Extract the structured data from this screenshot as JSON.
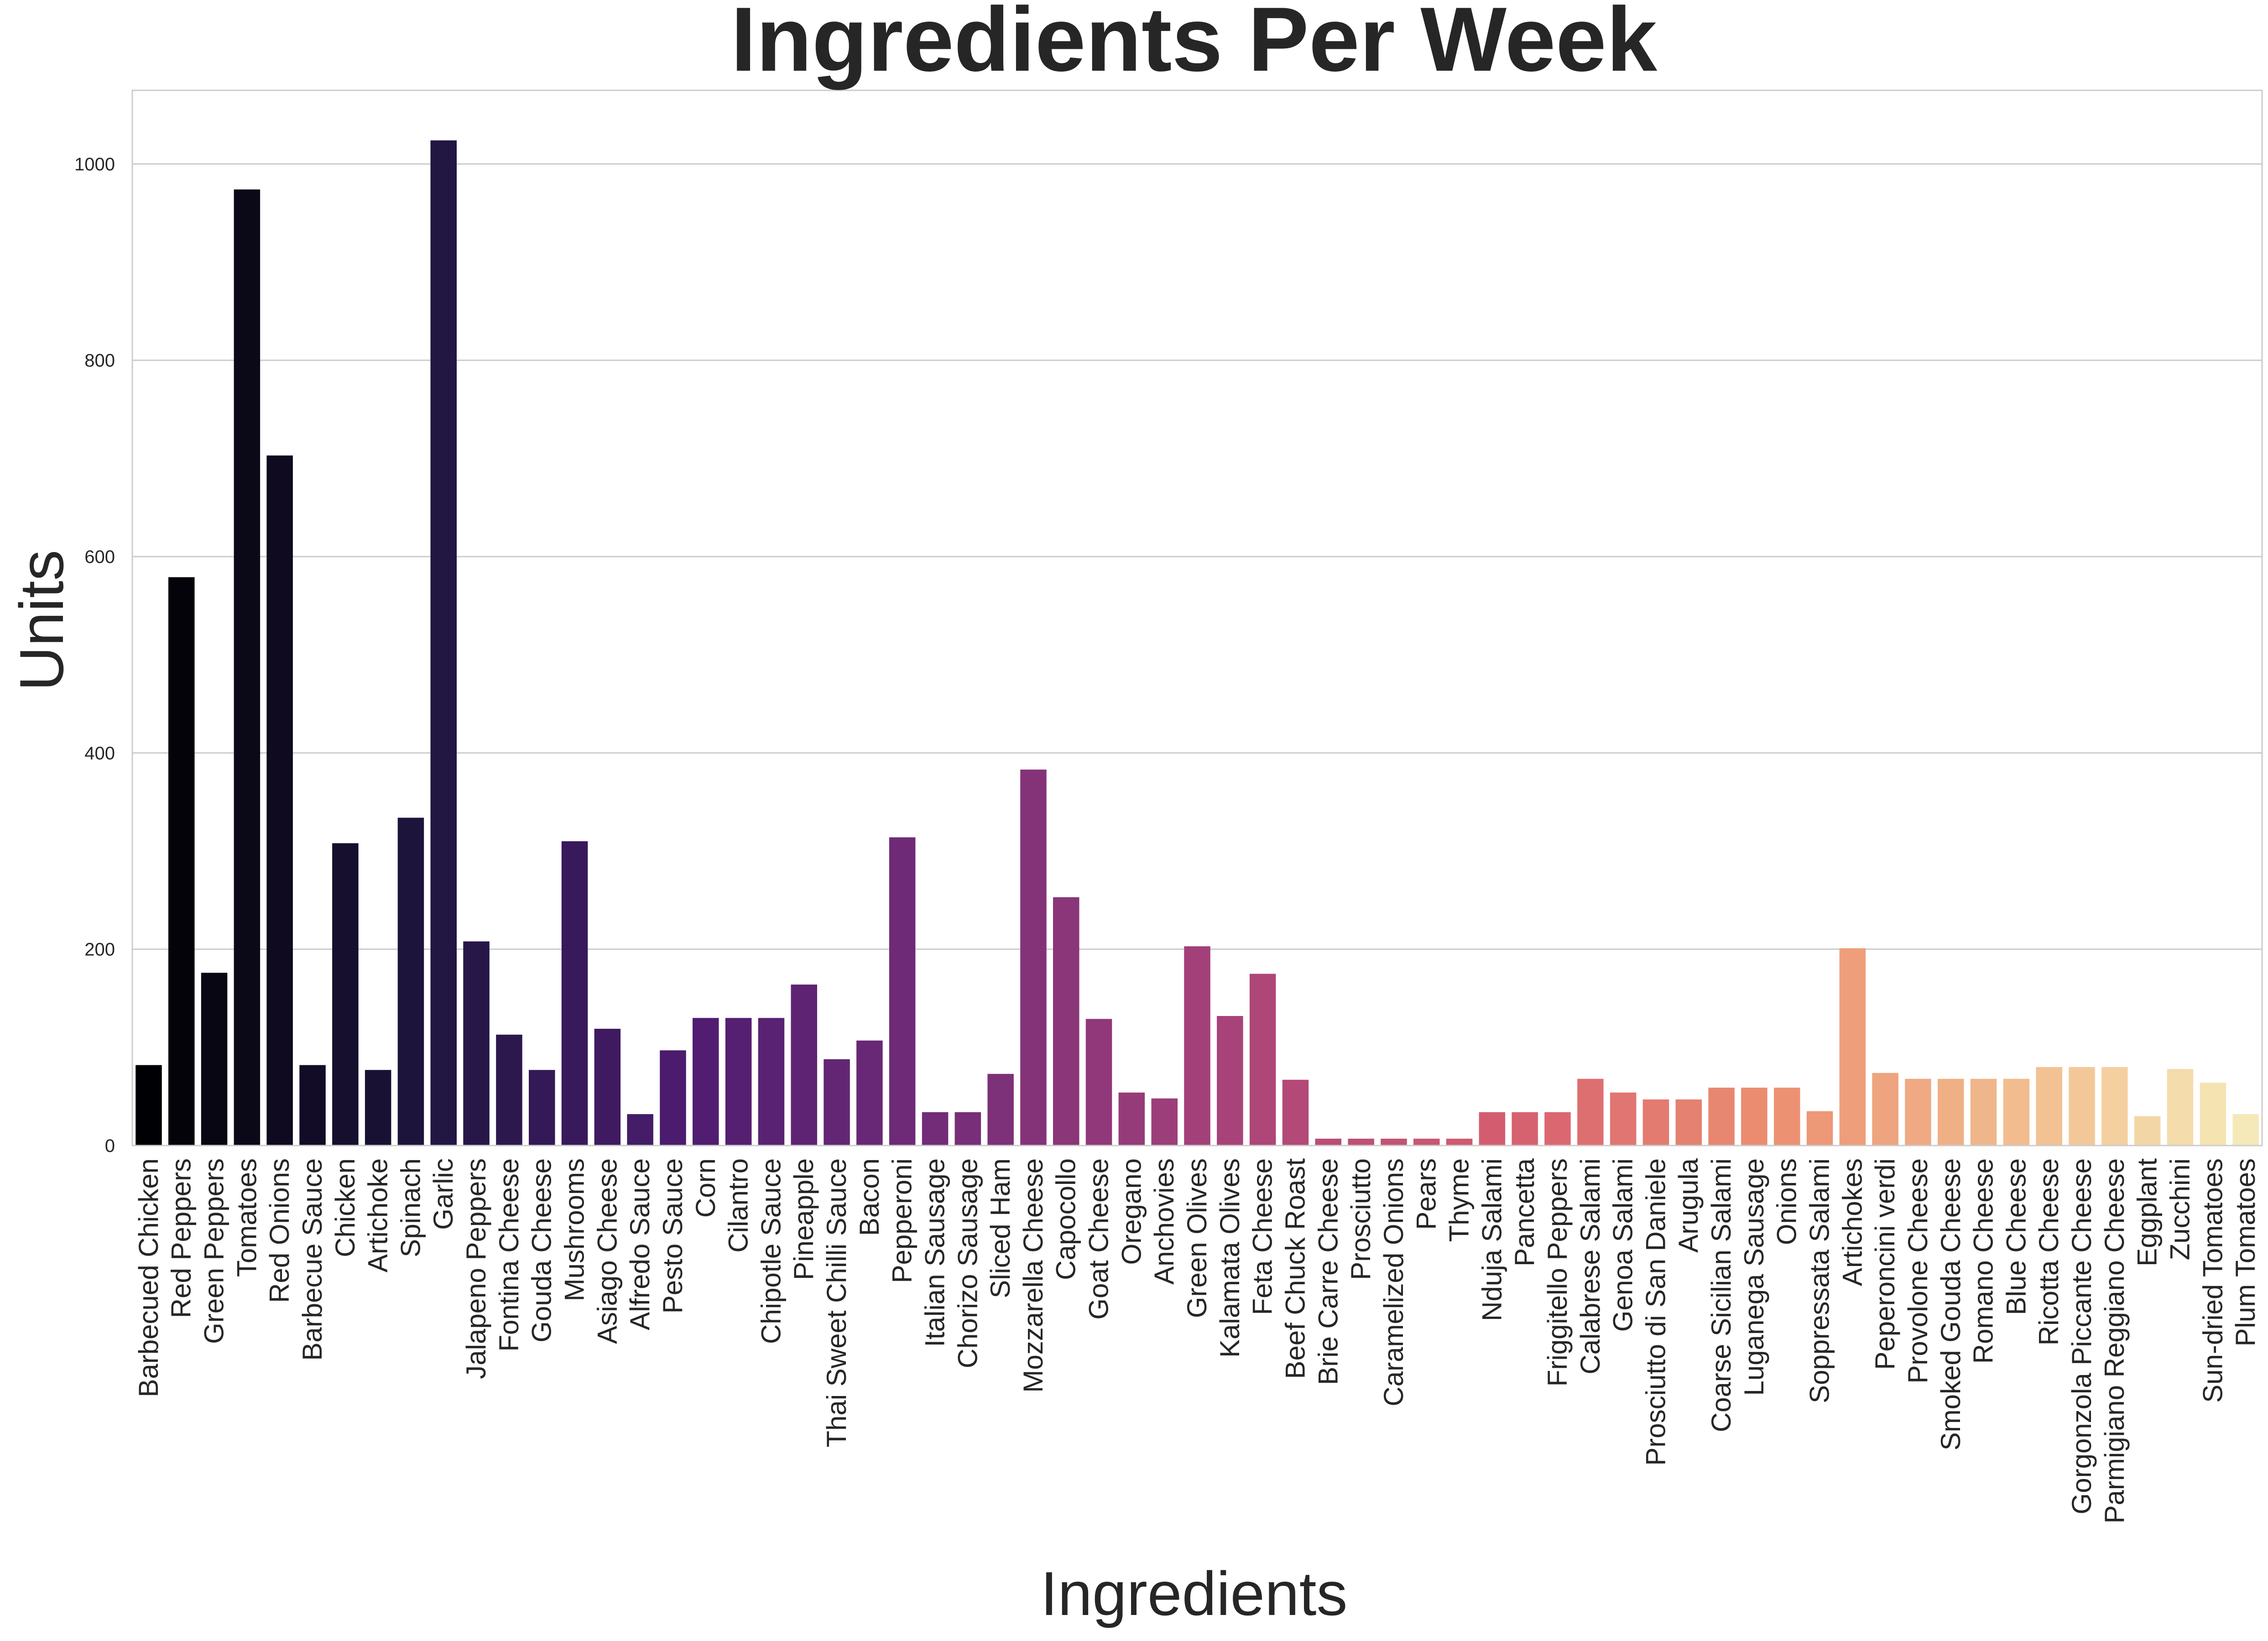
{
  "chart_data": {
    "type": "bar",
    "title": "Ingredients Per Week",
    "xlabel": "Ingredients",
    "ylabel": "Units",
    "ylim": [
      0,
      1075
    ],
    "yticks": [
      0,
      200,
      400,
      600,
      800,
      1000
    ],
    "grid": "horizontal",
    "palette": "magma",
    "colors": {
      "grid": "#cccccc",
      "frame": "#cccccc",
      "background": "#ffffff"
    },
    "categories": [
      "Barbecued Chicken",
      "Red Peppers",
      "Green Peppers",
      "Tomatoes",
      "Red Onions",
      "Barbecue Sauce",
      "Chicken",
      "Artichoke",
      "Spinach",
      "Garlic",
      "Jalapeno Peppers",
      "Fontina Cheese",
      "Gouda Cheese",
      "Mushrooms",
      "Asiago Cheese",
      "Alfredo Sauce",
      "Pesto Sauce",
      "Corn",
      "Cilantro",
      "Chipotle Sauce",
      "Pineapple",
      "Thai Sweet Chilli Sauce",
      "Bacon",
      "Pepperoni",
      "Italian Sausage",
      "Chorizo Sausage",
      "Sliced Ham",
      "Mozzarella Cheese",
      "Capocollo",
      "Goat Cheese",
      "Oregano",
      "Anchovies",
      "Green Olives",
      "Kalamata Olives",
      "Feta Cheese",
      "Beef Chuck Roast",
      "Brie Carre Cheese",
      "Prosciutto",
      "Caramelized Onions",
      "Pears",
      "Thyme",
      "Nduja Salami",
      "Pancetta",
      "Friggitello Peppers",
      "Calabrese Salami",
      "Genoa Salami",
      "Prosciutto di San Daniele",
      "Arugula",
      "Coarse Sicilian Salami",
      "Luganega Sausage",
      "Onions",
      "Soppressata Salami",
      "Artichokes",
      "Peperoncini verdi",
      "Provolone Cheese",
      "Smoked Gouda Cheese",
      "Romano Cheese",
      "Blue Cheese",
      "Ricotta Cheese",
      "Gorgonzola Piccante Cheese",
      "Parmigiano Reggiano Cheese",
      "Eggplant",
      "Zucchini",
      "Sun-dried Tomatoes",
      "Plum Tomatoes"
    ],
    "values": [
      82,
      579,
      176,
      974,
      703,
      82,
      308,
      77,
      334,
      1024,
      208,
      113,
      77,
      310,
      119,
      32,
      97,
      130,
      130,
      130,
      164,
      88,
      107,
      314,
      34,
      34,
      73,
      383,
      253,
      129,
      54,
      48,
      203,
      132,
      175,
      67,
      7,
      7,
      7,
      7,
      7,
      34,
      34,
      34,
      68,
      54,
      47,
      47,
      59,
      59,
      59,
      35,
      201,
      74,
      68,
      68,
      68,
      68,
      80,
      80,
      80,
      30,
      78,
      64,
      32
    ]
  }
}
